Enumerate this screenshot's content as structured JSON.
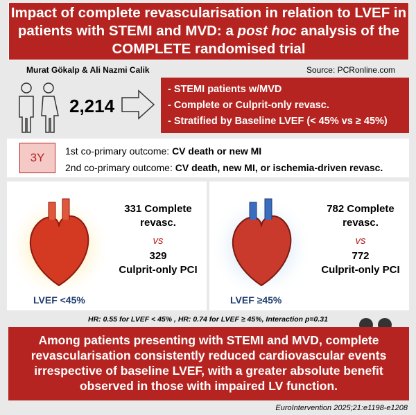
{
  "header": {
    "title_before": "Impact of complete revascularisation in relation to LVEF in patients with STEMI and MVD: a ",
    "title_italic": "post hoc",
    "title_after": " analysis of the COMPLETE randomised trial",
    "authors": "Murat Gökalp & Ali Nazmi Calik",
    "source": "Source: PCRonline.com"
  },
  "population": {
    "count": "2,214",
    "bullets": [
      "- STEMI patients w/MVD",
      "- Complete or Culprit-only revasc.",
      "- Stratified by Baseline LVEF (< 45% vs ≥ 45%)"
    ]
  },
  "outcomes": {
    "badge": "3Y",
    "items": [
      {
        "label": "1st co-primary outcome: ",
        "text": "CV death or new MI"
      },
      {
        "label": "2nd co-primary outcome: ",
        "text": "CV death, new MI, or ischemia-driven revasc."
      }
    ]
  },
  "panels": [
    {
      "complete": "331 Complete revasc.",
      "vs": "vs",
      "culprit_n": "329",
      "culprit": "Culprit-only PCI",
      "lvef": "LVEF <45%"
    },
    {
      "complete": "782 Complete revasc.",
      "vs": "vs",
      "culprit_n": "772",
      "culprit": "Culprit-only PCI",
      "lvef": "LVEF ≥45%"
    }
  ],
  "hr": "HR: 0.55 for LVEF < 45% , HR: 0.74 for LVEF ≥ 45%,  Interaction p=0.31",
  "conclusion": "Among patients presenting with STEMI and MVD, complete revascularisation consistently reduced cardiovascular events irrespective of baseline LVEF, with a greater absolute benefit observed in those with impaired LV function.",
  "citation": "EuroIntervention 2025;21:e1198-e1208"
}
